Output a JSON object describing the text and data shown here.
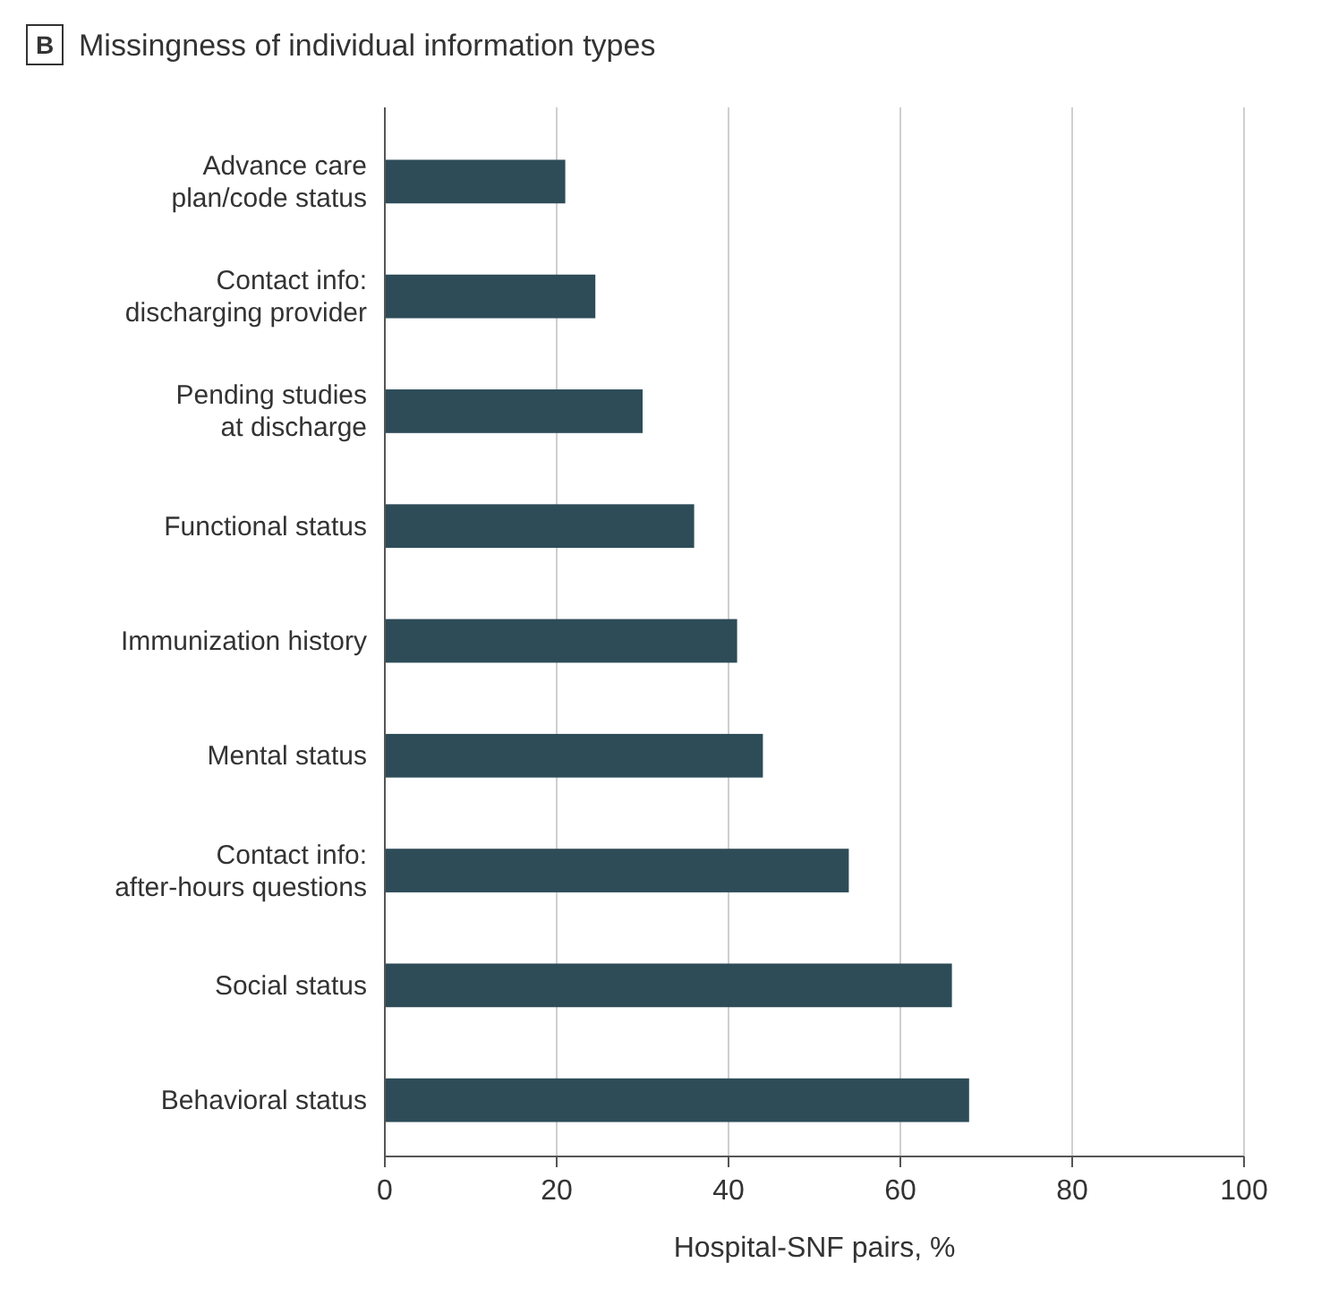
{
  "chart_data": {
    "type": "bar",
    "orientation": "horizontal",
    "title": "Missingness of individual information types",
    "annotations": [
      "B"
    ],
    "xlabel": "Hospital-SNF pairs, %",
    "categories": [
      "Advance care plan/code status",
      "Contact info: discharging provider",
      "Pending studies at discharge",
      "Functional status",
      "Immunization history",
      "Mental status",
      "Contact info: after-hours questions",
      "Social status",
      "Behavioral status"
    ],
    "values": [
      21,
      24.5,
      30,
      36,
      41,
      44,
      54,
      66,
      68
    ],
    "color": "#2d4c58",
    "xlim": [
      0,
      100
    ],
    "xticks": [
      0,
      20,
      40,
      60,
      80,
      100
    ],
    "grid": "x"
  }
}
